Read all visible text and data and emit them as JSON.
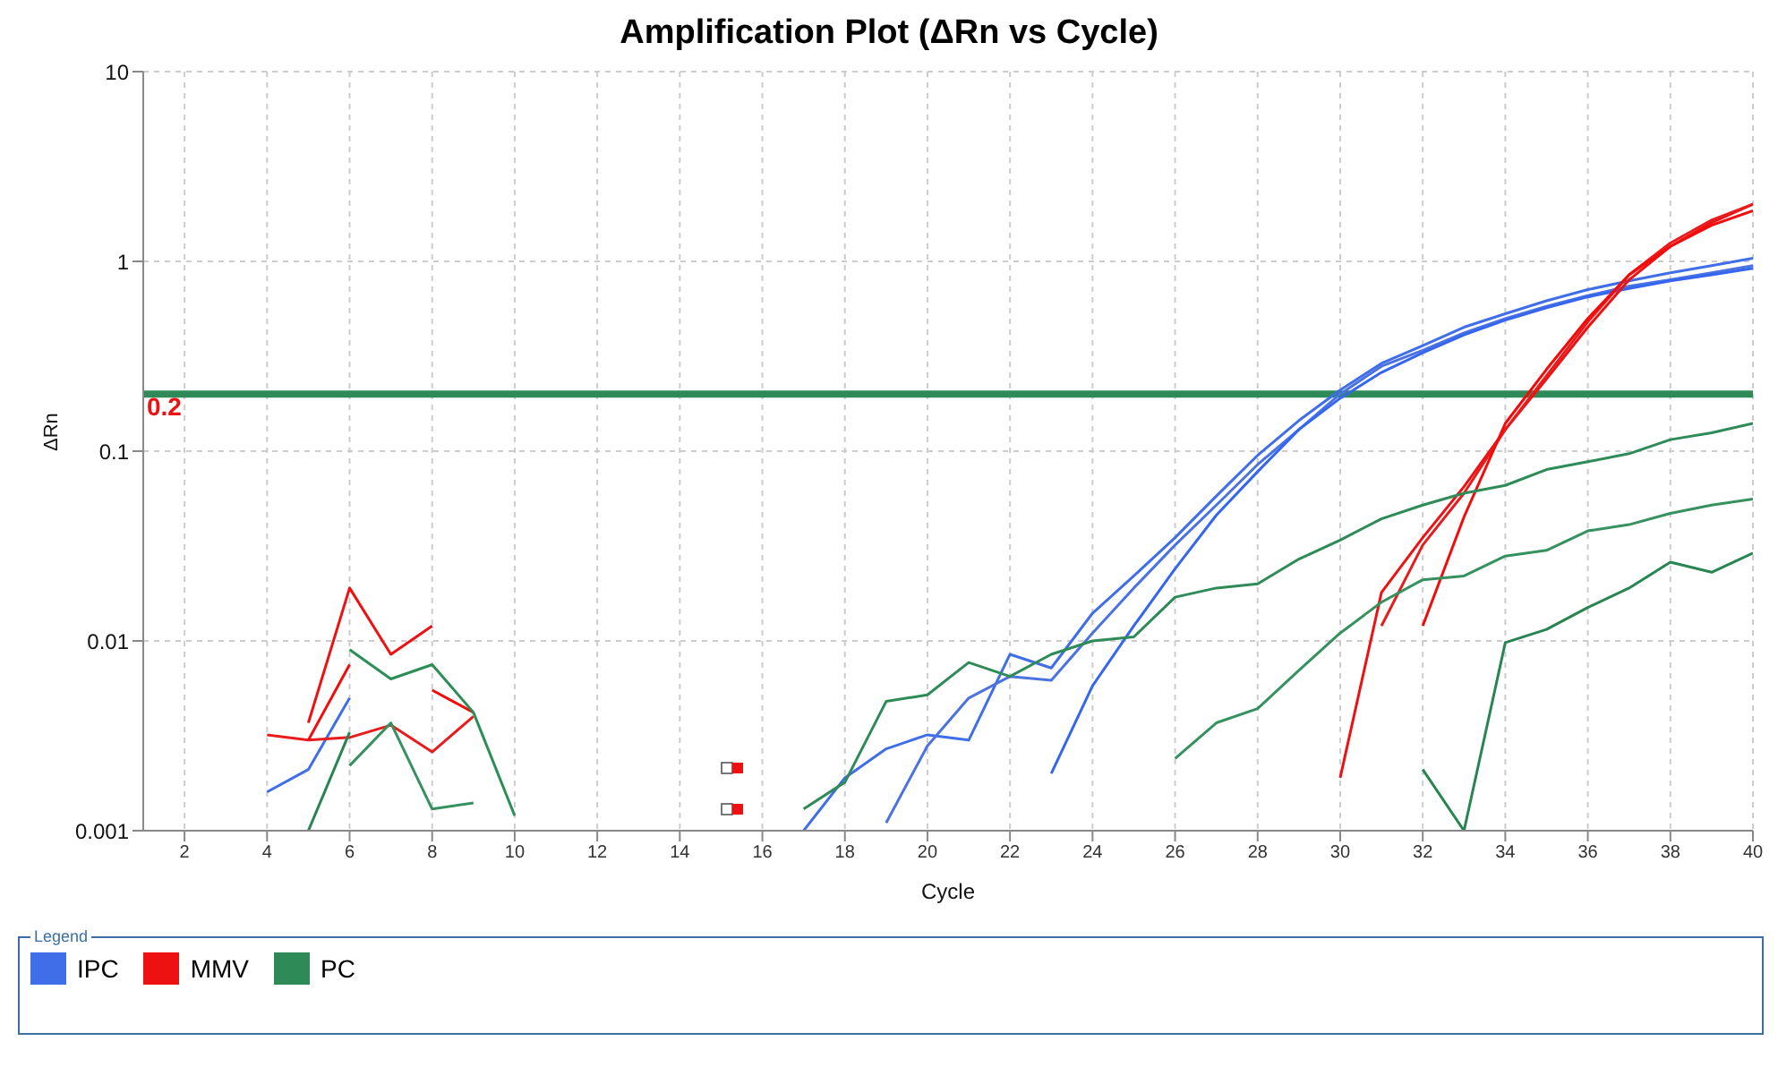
{
  "chart_data": {
    "type": "line",
    "title": "Amplification Plot (ΔRn vs Cycle)",
    "xlabel": "Cycle",
    "ylabel": "ΔRn",
    "legend_title": "Legend",
    "x": [
      4,
      5,
      6,
      7,
      8,
      9,
      10,
      17,
      18,
      19,
      20,
      21,
      22,
      23,
      24,
      25,
      26,
      27,
      28,
      29,
      30,
      31,
      32,
      33,
      34,
      35,
      36,
      37,
      38,
      39,
      40
    ],
    "series": [
      {
        "name": "IPC",
        "color": "#3f6ee8",
        "values": [
          0.0016,
          0.0021,
          0.005,
          null,
          null,
          null,
          null,
          0.001,
          0.0019,
          0.0027,
          0.0032,
          0.003,
          0.0085,
          0.0072,
          0.014,
          0.022,
          0.035,
          0.058,
          0.095,
          0.145,
          0.21,
          0.29,
          0.36,
          0.45,
          0.53,
          0.62,
          0.71,
          0.79,
          0.87,
          0.95,
          1.04
        ]
      },
      {
        "color": "#4a72e0",
        "values": [
          null,
          null,
          null,
          null,
          null,
          null,
          null,
          null,
          null,
          0.0011,
          0.0028,
          0.005,
          0.0065,
          0.0062,
          0.011,
          0.019,
          0.032,
          0.052,
          0.085,
          0.13,
          0.2,
          0.28,
          0.34,
          0.42,
          0.5,
          0.58,
          0.66,
          0.74,
          0.8,
          0.87,
          0.95
        ]
      },
      {
        "color": "#3566f0",
        "values": [
          null,
          null,
          null,
          null,
          null,
          null,
          null,
          null,
          null,
          null,
          null,
          null,
          null,
          0.002,
          0.0058,
          0.012,
          0.024,
          0.046,
          0.078,
          0.13,
          0.19,
          0.26,
          0.33,
          0.41,
          0.49,
          0.57,
          0.65,
          0.72,
          0.79,
          0.85,
          0.92
        ]
      },
      {
        "name": "MMV",
        "color": "#ee1111",
        "values": [
          null,
          0.0037,
          0.019,
          0.0085,
          0.012,
          null,
          null,
          null,
          null,
          null,
          null,
          null,
          null,
          null,
          null,
          null,
          null,
          null,
          null,
          null,
          0.0019,
          0.018,
          0.035,
          0.065,
          0.13,
          0.24,
          0.45,
          0.8,
          1.2,
          1.6,
          2.0
        ]
      },
      {
        "color": "#e81c1c",
        "values": [
          0.0032,
          0.003,
          0.0031,
          0.0036,
          0.0026,
          0.004,
          null,
          null,
          null,
          null,
          null,
          null,
          null,
          null,
          null,
          null,
          null,
          null,
          null,
          null,
          null,
          0.012,
          0.032,
          0.06,
          0.13,
          0.25,
          0.48,
          0.85,
          1.25,
          1.65,
          2.0
        ]
      },
      {
        "color": "#f50a0a",
        "values": [
          null,
          0.003,
          0.0075,
          null,
          0.0055,
          0.0042,
          null,
          null,
          null,
          null,
          null,
          null,
          null,
          null,
          null,
          null,
          null,
          null,
          null,
          null,
          null,
          null,
          0.012,
          0.045,
          0.14,
          0.27,
          0.5,
          0.85,
          1.2,
          1.55,
          1.85
        ]
      },
      {
        "name": "PC",
        "color": "#2e8b57",
        "values": [
          null,
          null,
          null,
          null,
          null,
          null,
          null,
          0.0013,
          0.0018,
          0.0048,
          0.0052,
          0.0077,
          0.0065,
          0.0085,
          0.01,
          0.0105,
          0.017,
          0.019,
          0.02,
          0.027,
          0.034,
          0.044,
          0.052,
          0.06,
          0.066,
          0.08,
          0.088,
          0.097,
          0.115,
          0.125,
          0.14
        ]
      },
      {
        "color": "#35915d",
        "values": [
          null,
          null,
          0.0022,
          0.0037,
          0.0013,
          0.0014,
          null,
          null,
          null,
          null,
          null,
          null,
          null,
          null,
          null,
          null,
          0.0024,
          0.0037,
          0.0044,
          0.007,
          0.011,
          0.016,
          0.021,
          0.022,
          0.028,
          0.03,
          0.038,
          0.041,
          0.047,
          0.052,
          0.056
        ]
      },
      {
        "color": "#288551",
        "values": [
          null,
          0.001,
          0.0033,
          null,
          null,
          null,
          null,
          null,
          null,
          null,
          null,
          null,
          null,
          null,
          null,
          null,
          null,
          null,
          null,
          null,
          null,
          null,
          0.0021,
          0.001,
          0.0098,
          0.0115,
          0.015,
          0.019,
          0.026,
          0.023,
          0.029
        ]
      },
      {
        "color": "#2b8e55",
        "values": [
          null,
          null,
          0.009,
          0.0063,
          0.0075,
          0.0042,
          0.0012,
          null,
          null,
          null,
          null,
          null,
          null,
          null,
          null,
          null,
          null,
          null,
          null,
          null,
          null,
          null,
          null,
          null,
          null,
          null,
          null,
          null,
          null,
          null,
          null
        ]
      }
    ],
    "xlim": [
      1,
      40
    ],
    "xticks": [
      2,
      4,
      6,
      8,
      10,
      12,
      14,
      16,
      18,
      20,
      22,
      24,
      26,
      28,
      30,
      32,
      34,
      36,
      38,
      40
    ],
    "ylim": [
      0.001,
      10
    ],
    "yticks": [
      0.001,
      0.01,
      0.1,
      1,
      10
    ],
    "log": "y",
    "grid": true,
    "legend": "bottom",
    "marker": "none",
    "line_style": "solid",
    "ref_lines": [
      {
        "axis": "y",
        "value": 0.2,
        "label": "0.2",
        "color": "#2e8b57"
      }
    ]
  }
}
